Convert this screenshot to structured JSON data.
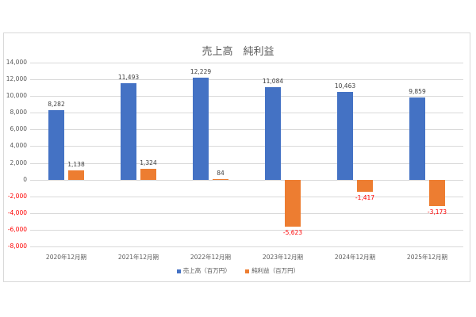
{
  "chart_data": {
    "type": "bar",
    "title": "売上高　純利益",
    "categories": [
      "2020年12月期",
      "2021年12月期",
      "2022年12月期",
      "2023年12月期",
      "2024年12月期",
      "2025年12月期"
    ],
    "series": [
      {
        "name": "売上高（百万円）",
        "color": "#4472c4",
        "values": [
          8282,
          11493,
          12229,
          11084,
          10463,
          9859
        ],
        "labels": [
          "8,282",
          "11,493",
          "12,229",
          "11,084",
          "10,463",
          "9,859"
        ]
      },
      {
        "name": "純利益（百万円）",
        "color": "#ed7d31",
        "values": [
          1138,
          1324,
          84,
          -5623,
          -1417,
          -3173
        ],
        "labels": [
          "1,138",
          "1,324",
          "84",
          "-5,623",
          "-1,417",
          "-3,173"
        ]
      }
    ],
    "xlabel": "",
    "ylabel": "",
    "ylim": [
      -8000,
      14000
    ],
    "yticks": [
      "14,000",
      "12,000",
      "10,000",
      "8,000",
      "6,000",
      "4,000",
      "2,000",
      "0",
      "-2,000",
      "-4,000",
      "-6,000",
      "-8,000"
    ],
    "ytick_values": [
      14000,
      12000,
      10000,
      8000,
      6000,
      4000,
      2000,
      0,
      -2000,
      -4000,
      -6000,
      -8000
    ],
    "negative_label_color": "#ff0000",
    "grid": true,
    "legend_position": "bottom"
  }
}
